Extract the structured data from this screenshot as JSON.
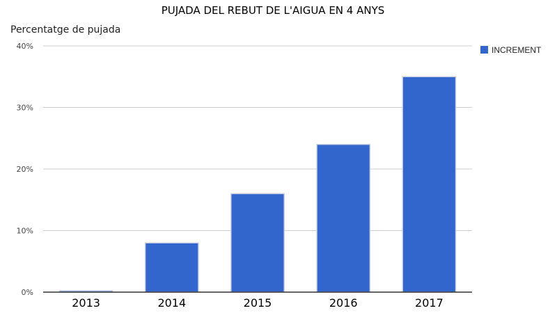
{
  "chart_data": {
    "type": "bar",
    "title": "PUJADA DEL REBUT DE L'AIGUA EN 4 ANYS",
    "ylabel": "Percentatge de pujada",
    "xlabel": "",
    "categories": [
      "2013",
      "2014",
      "2015",
      "2016",
      "2017"
    ],
    "series": [
      {
        "name": "INCREMENT",
        "values": [
          0,
          8,
          16,
          24,
          35
        ],
        "color": "#3366cc"
      }
    ],
    "ylim": [
      0,
      40
    ],
    "yticks": [
      0,
      10,
      20,
      30,
      40
    ],
    "ytick_labels": [
      "0%",
      "10%",
      "20%",
      "30%",
      "40%"
    ],
    "grid": true,
    "legend_position": "right"
  }
}
